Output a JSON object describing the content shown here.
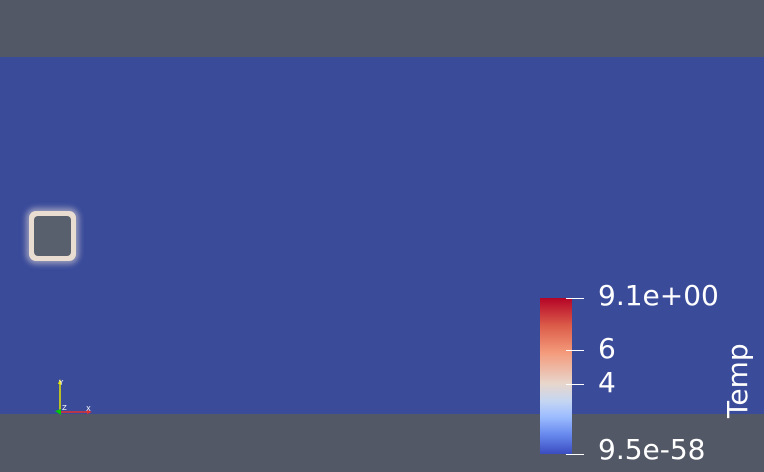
{
  "scene": {
    "background_color": "#525866",
    "domain_color": "#3a4b9a",
    "obstacle": {
      "fill_color": "#59606d",
      "halo_color": "#e9ddd2"
    }
  },
  "orientation_axes": {
    "y_label": "Y",
    "z_label": "Z",
    "x_label": "X",
    "y_color": "#e6e600",
    "z_color": "#00cc00",
    "x_color": "#e03030"
  },
  "colorbar": {
    "title": "Temp",
    "colormap": "Cool to Warm",
    "range": [
      9.5e-58,
      9.1
    ],
    "labels": {
      "max": "9.1e+00",
      "mid_high": "6",
      "mid_low": "4",
      "min": "9.5e-58"
    },
    "tick_values": [
      9.1,
      6,
      4,
      9.5e-58
    ],
    "colors": {
      "low": "#3b4cc0",
      "mid": "#dddddd",
      "high": "#b40426"
    }
  }
}
